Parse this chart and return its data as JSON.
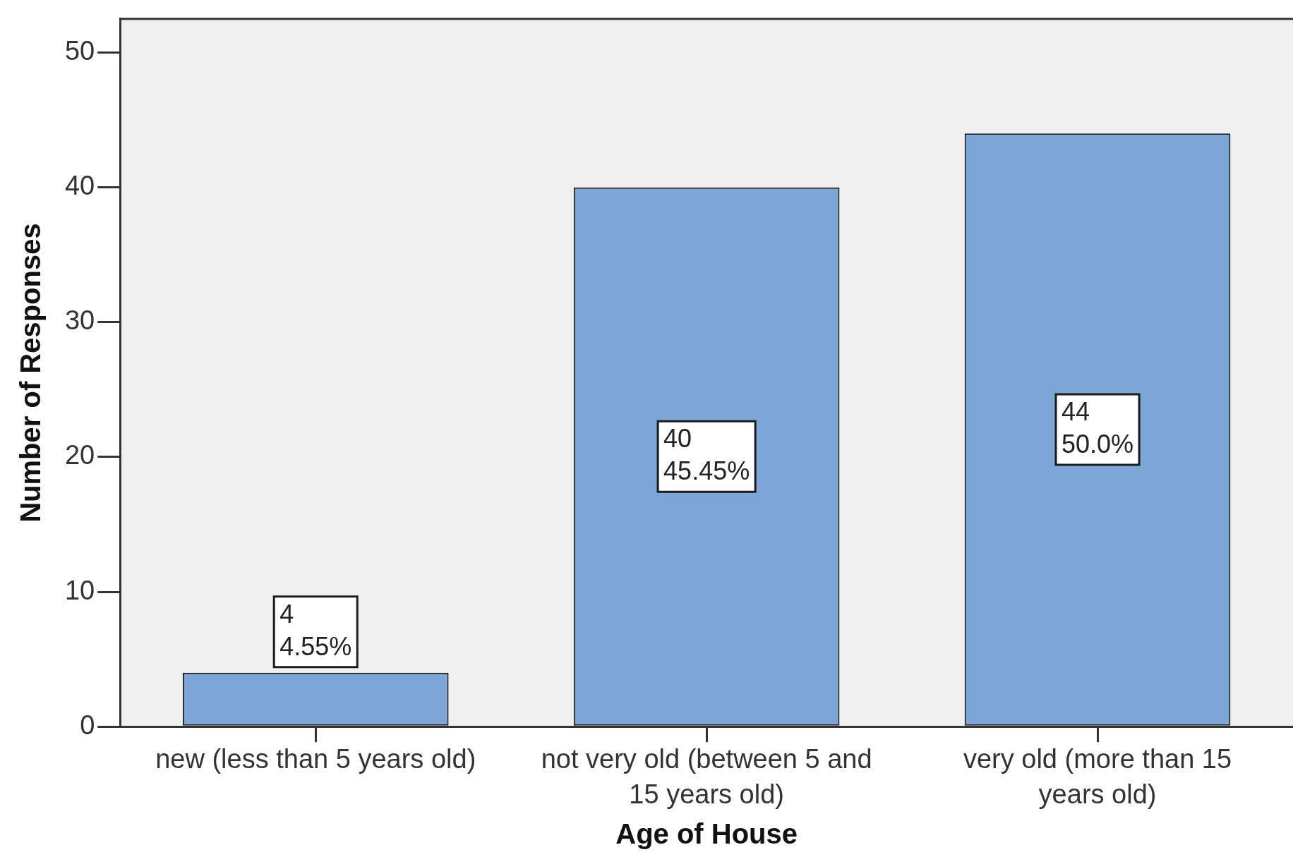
{
  "chart_data": {
    "type": "bar",
    "xlabel": "Age of House",
    "ylabel": "Number of Responses",
    "categories": [
      "new (less than 5 years old)",
      "not very old (between 5 and 15 years old)",
      "very old (more than 15 years old)"
    ],
    "values": [
      4,
      40,
      44
    ],
    "color": "#7ca6d5",
    "value_labels": [
      "4\n4.55%",
      "40\n45.45%",
      "44\n50.0%"
    ],
    "ylim": [
      0,
      52.5
    ],
    "yticks": [
      0,
      10,
      20,
      30,
      40,
      50
    ]
  }
}
